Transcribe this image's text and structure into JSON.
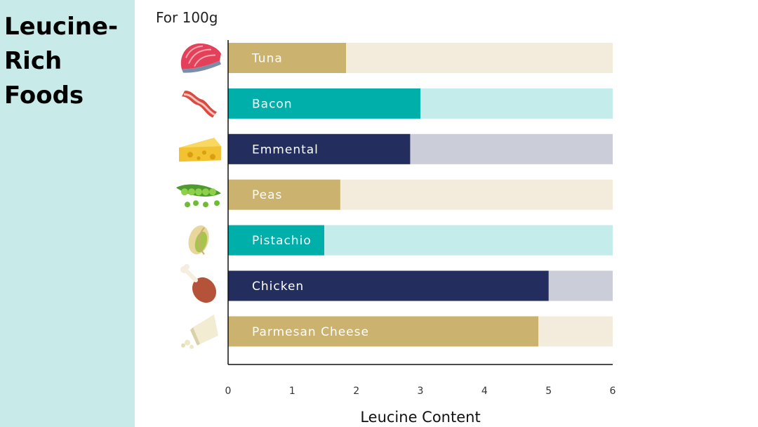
{
  "sidebar": {
    "title": "Leucine-Rich Foods"
  },
  "chart_data": {
    "type": "bar",
    "orientation": "horizontal",
    "subtitle": "For 100g",
    "xlabel": "Leucine Content",
    "xlim": [
      0,
      6
    ],
    "xticks": [
      0,
      1,
      2,
      3,
      4,
      5,
      6
    ],
    "grid": false,
    "legend": "none",
    "categories": [
      "Tuna",
      "Bacon",
      "Emmental",
      "Peas",
      "Pistachio",
      "Chicken",
      "Parmesan Cheese"
    ],
    "values": [
      1.84,
      3.0,
      2.84,
      1.75,
      1.5,
      5.0,
      4.84
    ],
    "icons": [
      "tuna-steak-icon",
      "bacon-icon",
      "swiss-cheese-icon",
      "pea-pod-icon",
      "pistachio-icon",
      "chicken-drumstick-icon",
      "parmesan-wedge-icon"
    ],
    "colors": [
      "#cbb26e",
      "#00afaa",
      "#232d5e",
      "#cbb26e",
      "#00afaa",
      "#232d5e",
      "#cbb26e"
    ],
    "track_colors": [
      "#f3ecdc",
      "#c3ecea",
      "#cbcdd9",
      "#f3ecdc",
      "#c3ecea",
      "#cbcdd9",
      "#f3ecdc"
    ]
  }
}
